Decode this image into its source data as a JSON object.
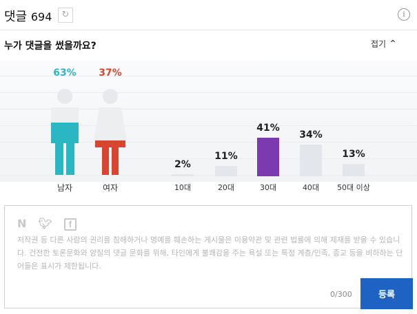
{
  "header": {
    "title": "댓글",
    "count": "694"
  },
  "question": "누가 댓글을 썼을까요?",
  "fold": {
    "label": "접기"
  },
  "gender": {
    "male": {
      "label": "남자",
      "percent": "63%",
      "value": 63,
      "color": "#2bb6c4"
    },
    "female": {
      "label": "여자",
      "percent": "37%",
      "value": 37,
      "color": "#d8462f"
    }
  },
  "ages": [
    {
      "label": "10대",
      "percent": "2%",
      "value": 2
    },
    {
      "label": "20대",
      "percent": "11%",
      "value": 11
    },
    {
      "label": "30대",
      "percent": "41%",
      "value": 41
    },
    {
      "label": "40대",
      "percent": "34%",
      "value": 34
    },
    {
      "label": "50대 이상",
      "percent": "13%",
      "value": 13
    }
  ],
  "colors": {
    "active_bar": "#7b3aaf",
    "inactive_bar": "#e3e7eb",
    "submit": "#1e62c4"
  },
  "comment": {
    "social": [
      "N",
      "twitter-icon",
      "facebook-icon"
    ],
    "notice": "저작권 등 다른 사람의 권리를 침해하거나 명예를 훼손하는 게시물은 이용약관 및 관련 법률에 의해 제재를 받을 수 있습니다. 건전한 토론문화와 양질의 댓글 문화를 위해, 타인에게 불쾌감을 주는 욕설 또는 특정 계층/민족, 종교 등을 비하하는 단어들은 표시가 제한됩니다.",
    "char_count": "0/300",
    "submit_label": "등록"
  }
}
